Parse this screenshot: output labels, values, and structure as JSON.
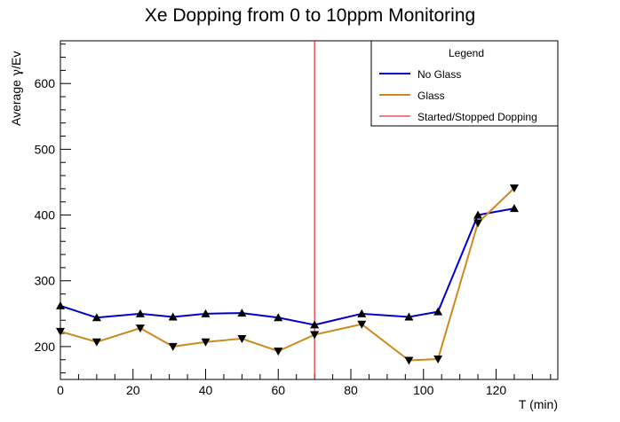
{
  "chart_data": {
    "type": "line",
    "title": "Xe Dopping from 0 to 10ppm Monitoring",
    "xlabel": "T (min)",
    "ylabel_main": "Average ",
    "ylabel_gamma": "γ",
    "ylabel_tail": "/Ev",
    "xlim": [
      0,
      137
    ],
    "ylim": [
      150,
      665
    ],
    "x_ticks": [
      0,
      20,
      40,
      60,
      80,
      100,
      120
    ],
    "y_ticks": [
      200,
      300,
      400,
      500,
      600
    ],
    "grid": false,
    "legend": {
      "title": "Legend",
      "placement": "top-right",
      "entries": [
        {
          "label": "No Glass",
          "color": "#0000cc"
        },
        {
          "label": "Glass",
          "color": "#cc8a1e"
        },
        {
          "label": "Started/Stopped Dopping",
          "color": "#dd0000"
        }
      ]
    },
    "series": [
      {
        "name": "No Glass",
        "color": "#0000cc",
        "marker": "triangle-up",
        "x": [
          0,
          10,
          22,
          31,
          40,
          50,
          60,
          70,
          83,
          96,
          104,
          115,
          125
        ],
        "y": [
          262,
          244,
          250,
          245,
          250,
          251,
          244,
          233,
          250,
          245,
          253,
          400,
          410
        ]
      },
      {
        "name": "Glass",
        "color": "#cc8a1e",
        "marker": "triangle-down",
        "x": [
          0,
          10,
          22,
          31,
          40,
          50,
          60,
          70,
          83,
          96,
          104,
          115,
          125
        ],
        "y": [
          223,
          207,
          228,
          200,
          207,
          212,
          193,
          218,
          234,
          179,
          181,
          388,
          441
        ]
      }
    ],
    "vline": {
      "name": "Started/Stopped Dopping",
      "x": 70,
      "color": "#dd0000"
    }
  }
}
